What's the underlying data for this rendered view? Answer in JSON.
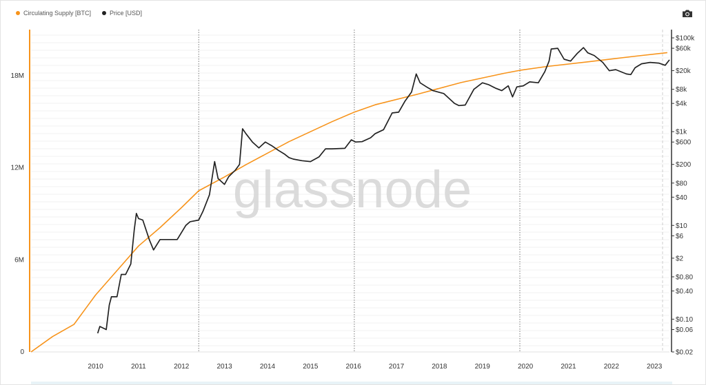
{
  "legend": [
    {
      "label": "Circulating Supply [BTC]",
      "color": "#f7931a"
    },
    {
      "label": "Price [USD]",
      "color": "#222222"
    }
  ],
  "toolbar": {
    "icon": "camera-icon"
  },
  "watermark": "glassnode",
  "chart_data": {
    "type": "line",
    "xlim": [
      2009.0,
      2023.85
    ],
    "x_ticks": [
      "2010",
      "2011",
      "2012",
      "2013",
      "2014",
      "2015",
      "2016",
      "2017",
      "2018",
      "2019",
      "2020",
      "2021",
      "2022",
      "2023"
    ],
    "halving_markers": [
      2012.9,
      2016.52,
      2020.37
    ],
    "left_axis": {
      "ticks": [
        "0",
        "6M",
        "12M",
        "18M"
      ],
      "values": [
        0,
        6000000,
        12000000,
        18000000
      ],
      "range": [
        0,
        21000000
      ]
    },
    "right_axis": {
      "scale": "log",
      "range": [
        0.02,
        150000
      ],
      "ticks": [
        "$100k",
        "$60k",
        "$20k",
        "$8k",
        "$4k",
        "$1k",
        "$600",
        "$200",
        "$80",
        "$40",
        "$10",
        "$6",
        "$2",
        "$0.80",
        "$0.40",
        "$0.10",
        "$0.06",
        "$0.02"
      ],
      "values": [
        100000,
        60000,
        20000,
        8000,
        4000,
        1000,
        600,
        200,
        80,
        40,
        10,
        6,
        2,
        0.8,
        0.4,
        0.1,
        0.06,
        0.02
      ]
    },
    "series": [
      {
        "name": "Circulating Supply [BTC]",
        "axis": "left",
        "color": "#f7931a",
        "x": [
          2009.0,
          2009.5,
          2010.0,
          2010.5,
          2011.0,
          2011.5,
          2012.0,
          2012.5,
          2012.9,
          2013.5,
          2014.0,
          2015.0,
          2016.0,
          2016.5,
          2017.0,
          2018.0,
          2019.0,
          2020.0,
          2020.37,
          2021.0,
          2022.0,
          2023.0,
          2023.8
        ],
        "values": [
          0,
          1000000,
          1800000,
          3700000,
          5300000,
          6900000,
          8100000,
          9400000,
          10500000,
          11400000,
          12200000,
          13700000,
          15000000,
          15600000,
          16100000,
          16800000,
          17550000,
          18150000,
          18350000,
          18600000,
          18920000,
          19250000,
          19500000
        ]
      },
      {
        "name": "Price [USD]",
        "axis": "right",
        "color": "#222222",
        "x": [
          2010.55,
          2010.6,
          2010.75,
          2010.82,
          2010.87,
          2011.0,
          2011.1,
          2011.2,
          2011.32,
          2011.4,
          2011.45,
          2011.5,
          2011.6,
          2011.75,
          2011.85,
          2012.0,
          2012.2,
          2012.4,
          2012.6,
          2012.7,
          2012.9,
          2013.0,
          2013.15,
          2013.27,
          2013.35,
          2013.5,
          2013.6,
          2013.75,
          2013.85,
          2013.92,
          2014.0,
          2014.15,
          2014.3,
          2014.45,
          2014.6,
          2014.75,
          2014.9,
          2015.0,
          2015.1,
          2015.3,
          2015.5,
          2015.7,
          2015.85,
          2016.0,
          2016.3,
          2016.45,
          2016.55,
          2016.7,
          2016.9,
          2017.0,
          2017.2,
          2017.4,
          2017.55,
          2017.7,
          2017.85,
          2017.96,
          2018.05,
          2018.2,
          2018.35,
          2018.6,
          2018.85,
          2018.95,
          2019.1,
          2019.3,
          2019.5,
          2019.65,
          2019.8,
          2019.95,
          2020.1,
          2020.2,
          2020.3,
          2020.45,
          2020.6,
          2020.8,
          2020.95,
          2021.05,
          2021.1,
          2021.25,
          2021.4,
          2021.55,
          2021.7,
          2021.85,
          2021.95,
          2022.1,
          2022.3,
          2022.45,
          2022.6,
          2022.85,
          2022.95,
          2023.05,
          2023.2,
          2023.4,
          2023.6,
          2023.75,
          2023.85
        ],
        "values": [
          0.05,
          0.07,
          0.06,
          0.2,
          0.3,
          0.3,
          0.9,
          0.9,
          1.5,
          8,
          18,
          14,
          13,
          5,
          3,
          5,
          5,
          5,
          10,
          12,
          13,
          20,
          45,
          230,
          100,
          75,
          110,
          150,
          200,
          1150,
          900,
          600,
          450,
          600,
          500,
          400,
          330,
          280,
          260,
          240,
          230,
          290,
          430,
          430,
          440,
          670,
          600,
          610,
          740,
          900,
          1100,
          2500,
          2600,
          4500,
          7000,
          17000,
          11000,
          9000,
          7500,
          6500,
          4000,
          3600,
          3700,
          8000,
          11000,
          10000,
          8500,
          7500,
          9500,
          5500,
          9000,
          9500,
          11500,
          11000,
          19000,
          32000,
          58000,
          60000,
          35000,
          32000,
          46000,
          62000,
          48000,
          42000,
          30000,
          20000,
          21000,
          17000,
          16500,
          23000,
          28000,
          30000,
          29000,
          26000,
          34000
        ]
      }
    ]
  }
}
